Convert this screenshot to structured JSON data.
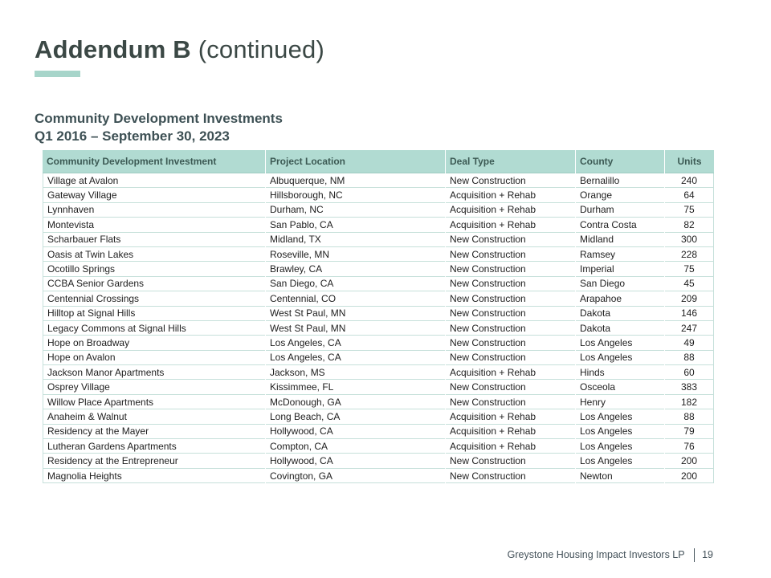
{
  "slide": {
    "title_bold": "Addendum B",
    "title_regular": " (continued)",
    "subtitle_line1": "Community Development Investments",
    "subtitle_line2": "Q1 2016 – September 30, 2023",
    "footer": {
      "company": "Greystone Housing Impact Investors LP",
      "page_number": "19"
    }
  },
  "colors": {
    "accent_teal": "#a7d5ca",
    "header_bg": "#b1dbd2",
    "header_text": "#3c5a54",
    "title_text": "#3b4845",
    "subtitle_text": "#3d5054",
    "body_text": "#1e1e1e",
    "table_border": "#c6e0da",
    "footer_text": "#44525a"
  },
  "table": {
    "columns": [
      "Community Development Investment",
      "Project Location",
      "Deal Type",
      "County",
      "Units"
    ],
    "rows": [
      [
        "Village at Avalon",
        "Albuquerque, NM",
        "New Construction",
        "Bernalillo",
        "240"
      ],
      [
        "Gateway Village",
        "Hillsborough, NC",
        "Acquisition + Rehab",
        "Orange",
        "64"
      ],
      [
        "Lynnhaven",
        "Durham, NC",
        "Acquisition + Rehab",
        "Durham",
        "75"
      ],
      [
        "Montevista",
        "San Pablo, CA",
        "Acquisition + Rehab",
        "Contra Costa",
        "82"
      ],
      [
        "Scharbauer Flats",
        "Midland, TX",
        "New Construction",
        "Midland",
        "300"
      ],
      [
        "Oasis at Twin Lakes",
        "Roseville, MN",
        "New Construction",
        "Ramsey",
        "228"
      ],
      [
        "Ocotillo Springs",
        "Brawley, CA",
        "New Construction",
        "Imperial",
        "75"
      ],
      [
        "CCBA Senior Gardens",
        "San Diego, CA",
        "New Construction",
        "San Diego",
        "45"
      ],
      [
        "Centennial Crossings",
        "Centennial, CO",
        "New Construction",
        "Arapahoe",
        "209"
      ],
      [
        "Hilltop at Signal Hills",
        "West St Paul, MN",
        "New Construction",
        "Dakota",
        "146"
      ],
      [
        "Legacy Commons at Signal Hills",
        "West St Paul, MN",
        "New Construction",
        "Dakota",
        "247"
      ],
      [
        "Hope on Broadway",
        "Los Angeles, CA",
        "New Construction",
        "Los Angeles",
        "49"
      ],
      [
        "Hope on Avalon",
        "Los Angeles, CA",
        "New Construction",
        "Los Angeles",
        "88"
      ],
      [
        "Jackson Manor Apartments",
        "Jackson, MS",
        "Acquisition + Rehab",
        "Hinds",
        "60"
      ],
      [
        "Osprey Village",
        "Kissimmee, FL",
        "New Construction",
        "Osceola",
        "383"
      ],
      [
        "Willow Place Apartments",
        "McDonough, GA",
        "New Construction",
        "Henry",
        "182"
      ],
      [
        "Anaheim & Walnut",
        "Long Beach, CA",
        "Acquisition + Rehab",
        "Los Angeles",
        "88"
      ],
      [
        "Residency at the Mayer",
        "Hollywood, CA",
        "Acquisition + Rehab",
        "Los Angeles",
        "79"
      ],
      [
        "Lutheran Gardens Apartments",
        "Compton, CA",
        "Acquisition + Rehab",
        "Los Angeles",
        "76"
      ],
      [
        "Residency at the Entrepreneur",
        "Hollywood, CA",
        "New Construction",
        "Los Angeles",
        "200"
      ],
      [
        "Magnolia Heights",
        "Covington, GA",
        "New Construction",
        "Newton",
        "200"
      ]
    ]
  }
}
